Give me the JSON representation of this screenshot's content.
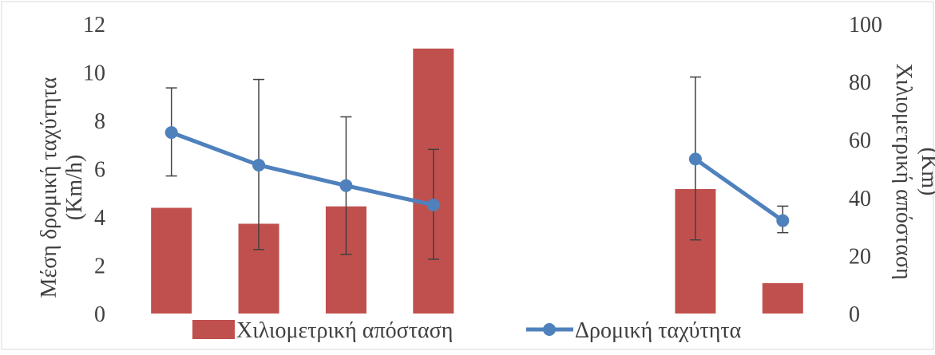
{
  "chart_data": {
    "type": "bar",
    "categories": [
      "",
      "",
      "",
      "",
      "",
      "",
      "",
      ""
    ],
    "left_axis": {
      "label_line1": "Μέση δρομική ταχύτητα",
      "label_line2": "(Km/h)",
      "ylim": [
        0,
        12
      ],
      "ticks": [
        "0",
        "2",
        "4",
        "6",
        "8",
        "10",
        "12"
      ]
    },
    "right_axis": {
      "label_line1": "Χιλιομετρική απόσταση",
      "label_line2": "(Km)",
      "ylim": [
        0,
        100
      ],
      "ticks": [
        "0",
        "20",
        "40",
        "60",
        "80",
        "100"
      ]
    },
    "bar_series": {
      "name": "Χιλιομετρική απόσταση",
      "axis": "right",
      "color": "#c0504d",
      "values": [
        36.5,
        31,
        37,
        91.5,
        null,
        null,
        43,
        10.5
      ]
    },
    "line_series": {
      "name": "Δρομική ταχύτητα",
      "axis": "left",
      "color": "#4f81bd",
      "values": [
        7.5,
        6.15,
        5.3,
        4.5,
        null,
        null,
        6.4,
        3.85
      ],
      "error_low": [
        5.7,
        2.65,
        2.45,
        2.25,
        null,
        null,
        3.05,
        3.35
      ],
      "error_high": [
        9.35,
        9.7,
        8.15,
        6.8,
        null,
        null,
        9.8,
        4.45
      ]
    },
    "legend_position": "bottom",
    "grid": false
  }
}
